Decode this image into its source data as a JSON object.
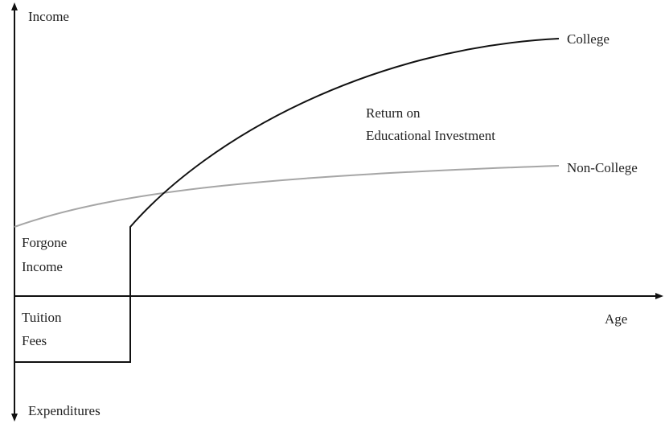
{
  "axes": {
    "y_top": "Income",
    "y_bottom": "Expenditures",
    "x": "Age"
  },
  "curves": {
    "college": "College",
    "non_college": "Non-College"
  },
  "annotations": {
    "return": [
      "Return on",
      "Educational Investment"
    ],
    "forgone": [
      "Forgone",
      "Income"
    ],
    "tuition": [
      "Tuition",
      "Fees"
    ]
  }
}
